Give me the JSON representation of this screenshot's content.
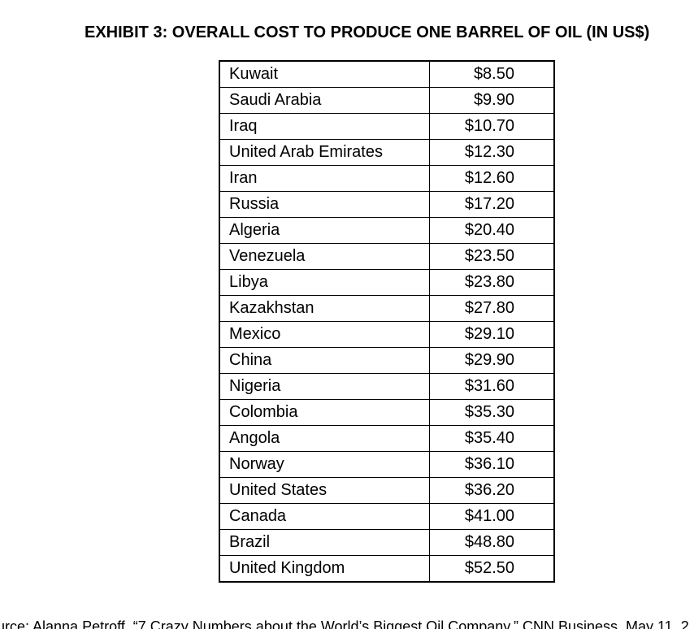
{
  "title": "EXHIBIT 3: OVERALL COST TO PRODUCE ONE BARREL OF OIL (IN US$)",
  "table": {
    "rows": [
      {
        "country": "Kuwait",
        "cost": "$8.50"
      },
      {
        "country": "Saudi Arabia",
        "cost": "$9.90"
      },
      {
        "country": "Iraq",
        "cost": "$10.70"
      },
      {
        "country": "United Arab Emirates",
        "cost": "$12.30"
      },
      {
        "country": "Iran",
        "cost": "$12.60"
      },
      {
        "country": "Russia",
        "cost": "$17.20"
      },
      {
        "country": "Algeria",
        "cost": "$20.40"
      },
      {
        "country": "Venezuela",
        "cost": "$23.50"
      },
      {
        "country": "Libya",
        "cost": "$23.80"
      },
      {
        "country": "Kazakhstan",
        "cost": "$27.80"
      },
      {
        "country": "Mexico",
        "cost": "$29.10"
      },
      {
        "country": "China",
        "cost": "$29.90"
      },
      {
        "country": "Nigeria",
        "cost": "$31.60"
      },
      {
        "country": "Colombia",
        "cost": "$35.30"
      },
      {
        "country": "Angola",
        "cost": "$35.40"
      },
      {
        "country": "Norway",
        "cost": "$36.10"
      },
      {
        "country": "United States",
        "cost": "$36.20"
      },
      {
        "country": "Canada",
        "cost": "$41.00"
      },
      {
        "country": "Brazil",
        "cost": "$48.80"
      },
      {
        "country": "United Kingdom",
        "cost": "$52.50"
      }
    ]
  },
  "source": "urce: Alanna Petroff, “7 Crazy Numbers about the World’s Biggest Oil Company,” CNN Business, May 11, 2"
}
